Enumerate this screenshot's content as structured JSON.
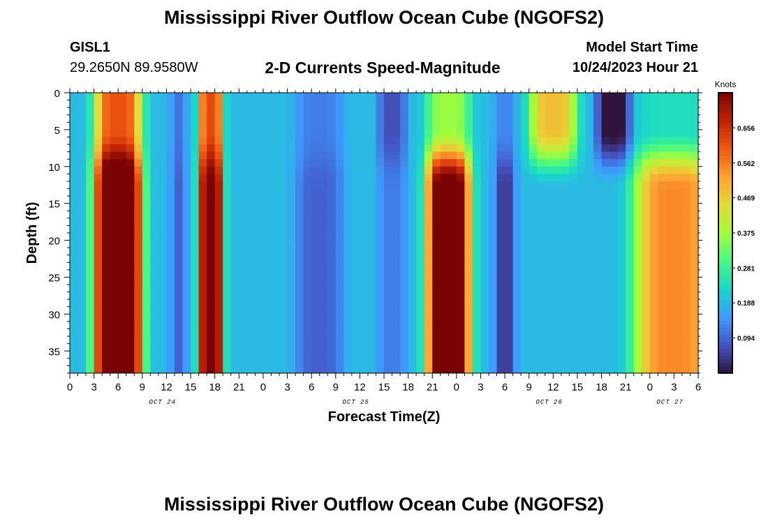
{
  "header": {
    "title": "Mississippi River Outflow Ocean Cube (NGOFS2)",
    "station": "GISL1",
    "coords": "29.2650N  89.9580W",
    "subtitle": "2-D Currents Speed-Magnitude",
    "model_start_label": "Model Start Time",
    "model_start_value": "10/24/2023 Hour 21"
  },
  "footer": {
    "title": "Mississippi River Outflow Ocean Cube (NGOFS2)"
  },
  "chart_data": {
    "type": "heatmap",
    "title": "2-D Currents Speed-Magnitude",
    "xlabel": "Forecast Time(Z)",
    "ylabel": "Depth (ft)",
    "x_range_hours": [
      0,
      78
    ],
    "y_range_ft": [
      0,
      38
    ],
    "y_inverted": true,
    "x_tick_labels": [
      "0",
      "3",
      "6",
      "9",
      "12",
      "15",
      "18",
      "21",
      "0",
      "3",
      "6",
      "9",
      "12",
      "15",
      "18",
      "21",
      "0",
      "3",
      "6",
      "9",
      "12",
      "15",
      "18",
      "21",
      "0",
      "3",
      "6"
    ],
    "y_tick_labels": [
      "0",
      "5",
      "10",
      "15",
      "20",
      "25",
      "30",
      "35"
    ],
    "y_ticks": [
      0,
      5,
      10,
      15,
      20,
      25,
      30,
      35
    ],
    "date_labels": [
      {
        "text": "OCT 24",
        "hour": 11.5
      },
      {
        "text": "OCT 25",
        "hour": 35.5
      },
      {
        "text": "OCT 26",
        "hour": 59.5
      },
      {
        "text": "OCT 27",
        "hour": 74.5
      }
    ],
    "colorbar": {
      "unit": "Knots",
      "ticks": [
        "0.094",
        "0.188",
        "0.281",
        "0.375",
        "0.469",
        "0.562",
        "0.656"
      ],
      "tick_values": [
        0.094,
        0.188,
        0.281,
        0.375,
        0.469,
        0.562,
        0.656
      ],
      "range": [
        0,
        0.75
      ],
      "colors": [
        "#30123b",
        "#4454c4",
        "#3e9bfe",
        "#18d6cb",
        "#46f884",
        "#a2fc3c",
        "#e1dd37",
        "#fea331",
        "#ef5911",
        "#c22402",
        "#7a0403"
      ]
    },
    "features": {
      "surface_depth": 5,
      "mid_depth": 13,
      "series": [
        {
          "hour": 6,
          "surface": 0.42,
          "mid": 0.7,
          "width": 3.0
        },
        {
          "hour": 13.5,
          "surface": -0.08,
          "mid": -0.1,
          "width": 1.0
        },
        {
          "hour": 17.5,
          "surface": 0.43,
          "mid": 0.58,
          "width": 1.6
        },
        {
          "hour": 31,
          "surface": -0.07,
          "mid": -0.1,
          "width": 3.0
        },
        {
          "hour": 40,
          "surface": -0.12,
          "mid": -0.07,
          "width": 1.8
        },
        {
          "hour": 47,
          "surface": 0.18,
          "mid": 0.62,
          "width": 2.8
        },
        {
          "hour": 54,
          "surface": -0.06,
          "mid": -0.14,
          "width": 1.4
        },
        {
          "hour": 60,
          "surface": 0.3,
          "mid": 0.0,
          "width": 3.0
        },
        {
          "hour": 67.5,
          "surface": -0.2,
          "mid": 0.0,
          "width": 2.2
        },
        {
          "hour": 75,
          "surface": 0.05,
          "mid": 0.36,
          "width": 5.0
        }
      ],
      "baseline": 0.19
    }
  }
}
